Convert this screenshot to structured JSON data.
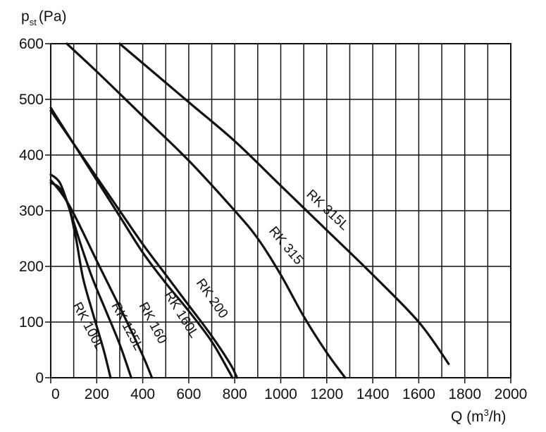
{
  "chart_data": {
    "type": "line",
    "ylabel": {
      "main": "p",
      "sub": "st",
      "unit": "(Pa)"
    },
    "xlabel": {
      "main": "Q (m",
      "sup": "3",
      "unit": "/h)"
    },
    "xlim": [
      0,
      2000
    ],
    "ylim": [
      0,
      600
    ],
    "x_ticks": [
      0,
      200,
      400,
      600,
      800,
      1000,
      1200,
      1400,
      1600,
      1800,
      2000
    ],
    "y_ticks": [
      0,
      100,
      200,
      300,
      400,
      500,
      600
    ],
    "grid": true,
    "line_color": "#111111",
    "series": [
      {
        "name": "RK 100L",
        "points": [
          [
            0,
            350
          ],
          [
            40,
            340
          ],
          [
            80,
            305
          ],
          [
            110,
            250
          ],
          [
            140,
            180
          ],
          [
            180,
            120
          ],
          [
            230,
            50
          ],
          [
            260,
            0
          ]
        ]
      },
      {
        "name": "RK 125L",
        "points": [
          [
            0,
            365
          ],
          [
            40,
            350
          ],
          [
            80,
            305
          ],
          [
            130,
            240
          ],
          [
            180,
            180
          ],
          [
            240,
            120
          ],
          [
            300,
            60
          ],
          [
            350,
            0
          ]
        ]
      },
      {
        "name": "RK 160",
        "points": [
          [
            0,
            355
          ],
          [
            40,
            335
          ],
          [
            80,
            310
          ],
          [
            130,
            270
          ],
          [
            200,
            210
          ],
          [
            260,
            160
          ],
          [
            320,
            110
          ],
          [
            400,
            40
          ],
          [
            440,
            0
          ]
        ]
      },
      {
        "name": "RK 160L",
        "points": [
          [
            0,
            485
          ],
          [
            100,
            420
          ],
          [
            200,
            355
          ],
          [
            300,
            290
          ],
          [
            400,
            225
          ],
          [
            500,
            170
          ],
          [
            600,
            120
          ],
          [
            700,
            65
          ],
          [
            770,
            15
          ],
          [
            790,
            0
          ]
        ]
      },
      {
        "name": "RK 200",
        "points": [
          [
            0,
            480
          ],
          [
            100,
            420
          ],
          [
            200,
            360
          ],
          [
            300,
            300
          ],
          [
            400,
            240
          ],
          [
            500,
            185
          ],
          [
            600,
            130
          ],
          [
            700,
            75
          ],
          [
            780,
            25
          ],
          [
            810,
            0
          ]
        ]
      },
      {
        "name": "RK 315",
        "points": [
          [
            70,
            600
          ],
          [
            200,
            550
          ],
          [
            400,
            470
          ],
          [
            600,
            390
          ],
          [
            800,
            300
          ],
          [
            900,
            250
          ],
          [
            1000,
            185
          ],
          [
            1100,
            110
          ],
          [
            1200,
            45
          ],
          [
            1280,
            0
          ]
        ]
      },
      {
        "name": "RK 315L",
        "points": [
          [
            300,
            600
          ],
          [
            600,
            495
          ],
          [
            800,
            425
          ],
          [
            1000,
            345
          ],
          [
            1200,
            265
          ],
          [
            1400,
            185
          ],
          [
            1600,
            100
          ],
          [
            1730,
            25
          ]
        ]
      }
    ],
    "curve_labels": [
      {
        "text": "RK 100L",
        "series": "RK 100L"
      },
      {
        "text": "RK 125L",
        "series": "RK 125L"
      },
      {
        "text": "RK 160",
        "series": "RK 160"
      },
      {
        "text": "RK 160L",
        "series": "RK 160L"
      },
      {
        "text": "RK 200",
        "series": "RK 200"
      },
      {
        "text": "RK 315",
        "series": "RK 315"
      },
      {
        "text": "RK 315L",
        "series": "RK 315L"
      }
    ]
  }
}
